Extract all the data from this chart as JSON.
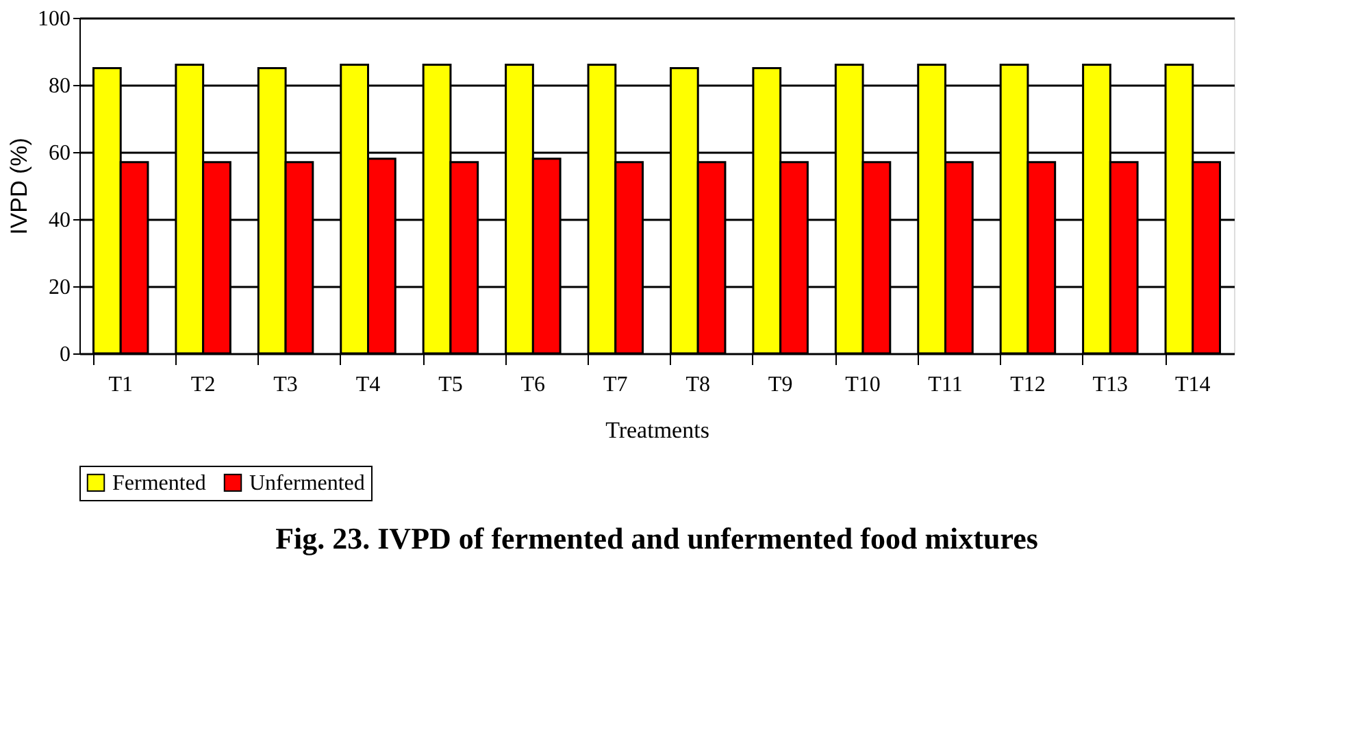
{
  "chart_data": {
    "type": "bar",
    "title": "Fig. 23. IVPD of fermented and unfermented food mixtures",
    "xlabel": "Treatments",
    "ylabel": "IVPD (%)",
    "categories": [
      "T1",
      "T2",
      "T3",
      "T4",
      "T5",
      "T6",
      "T7",
      "T8",
      "T9",
      "T10",
      "T11",
      "T12",
      "T13",
      "T14"
    ],
    "series": [
      {
        "name": "Fermented",
        "color": "#ffff00",
        "values": [
          85,
          86,
          85,
          86,
          86,
          86,
          86,
          85,
          85,
          86,
          86,
          86,
          86,
          86
        ]
      },
      {
        "name": "Unfermented",
        "color": "#ff0000",
        "values": [
          57,
          57,
          57,
          58,
          57,
          58,
          57,
          57,
          57,
          57,
          57,
          57,
          57,
          57
        ]
      }
    ],
    "ylim": [
      0,
      100
    ],
    "yticks": [
      0,
      20,
      40,
      60,
      80,
      100
    ],
    "grid": "y",
    "legend": "bottom"
  }
}
